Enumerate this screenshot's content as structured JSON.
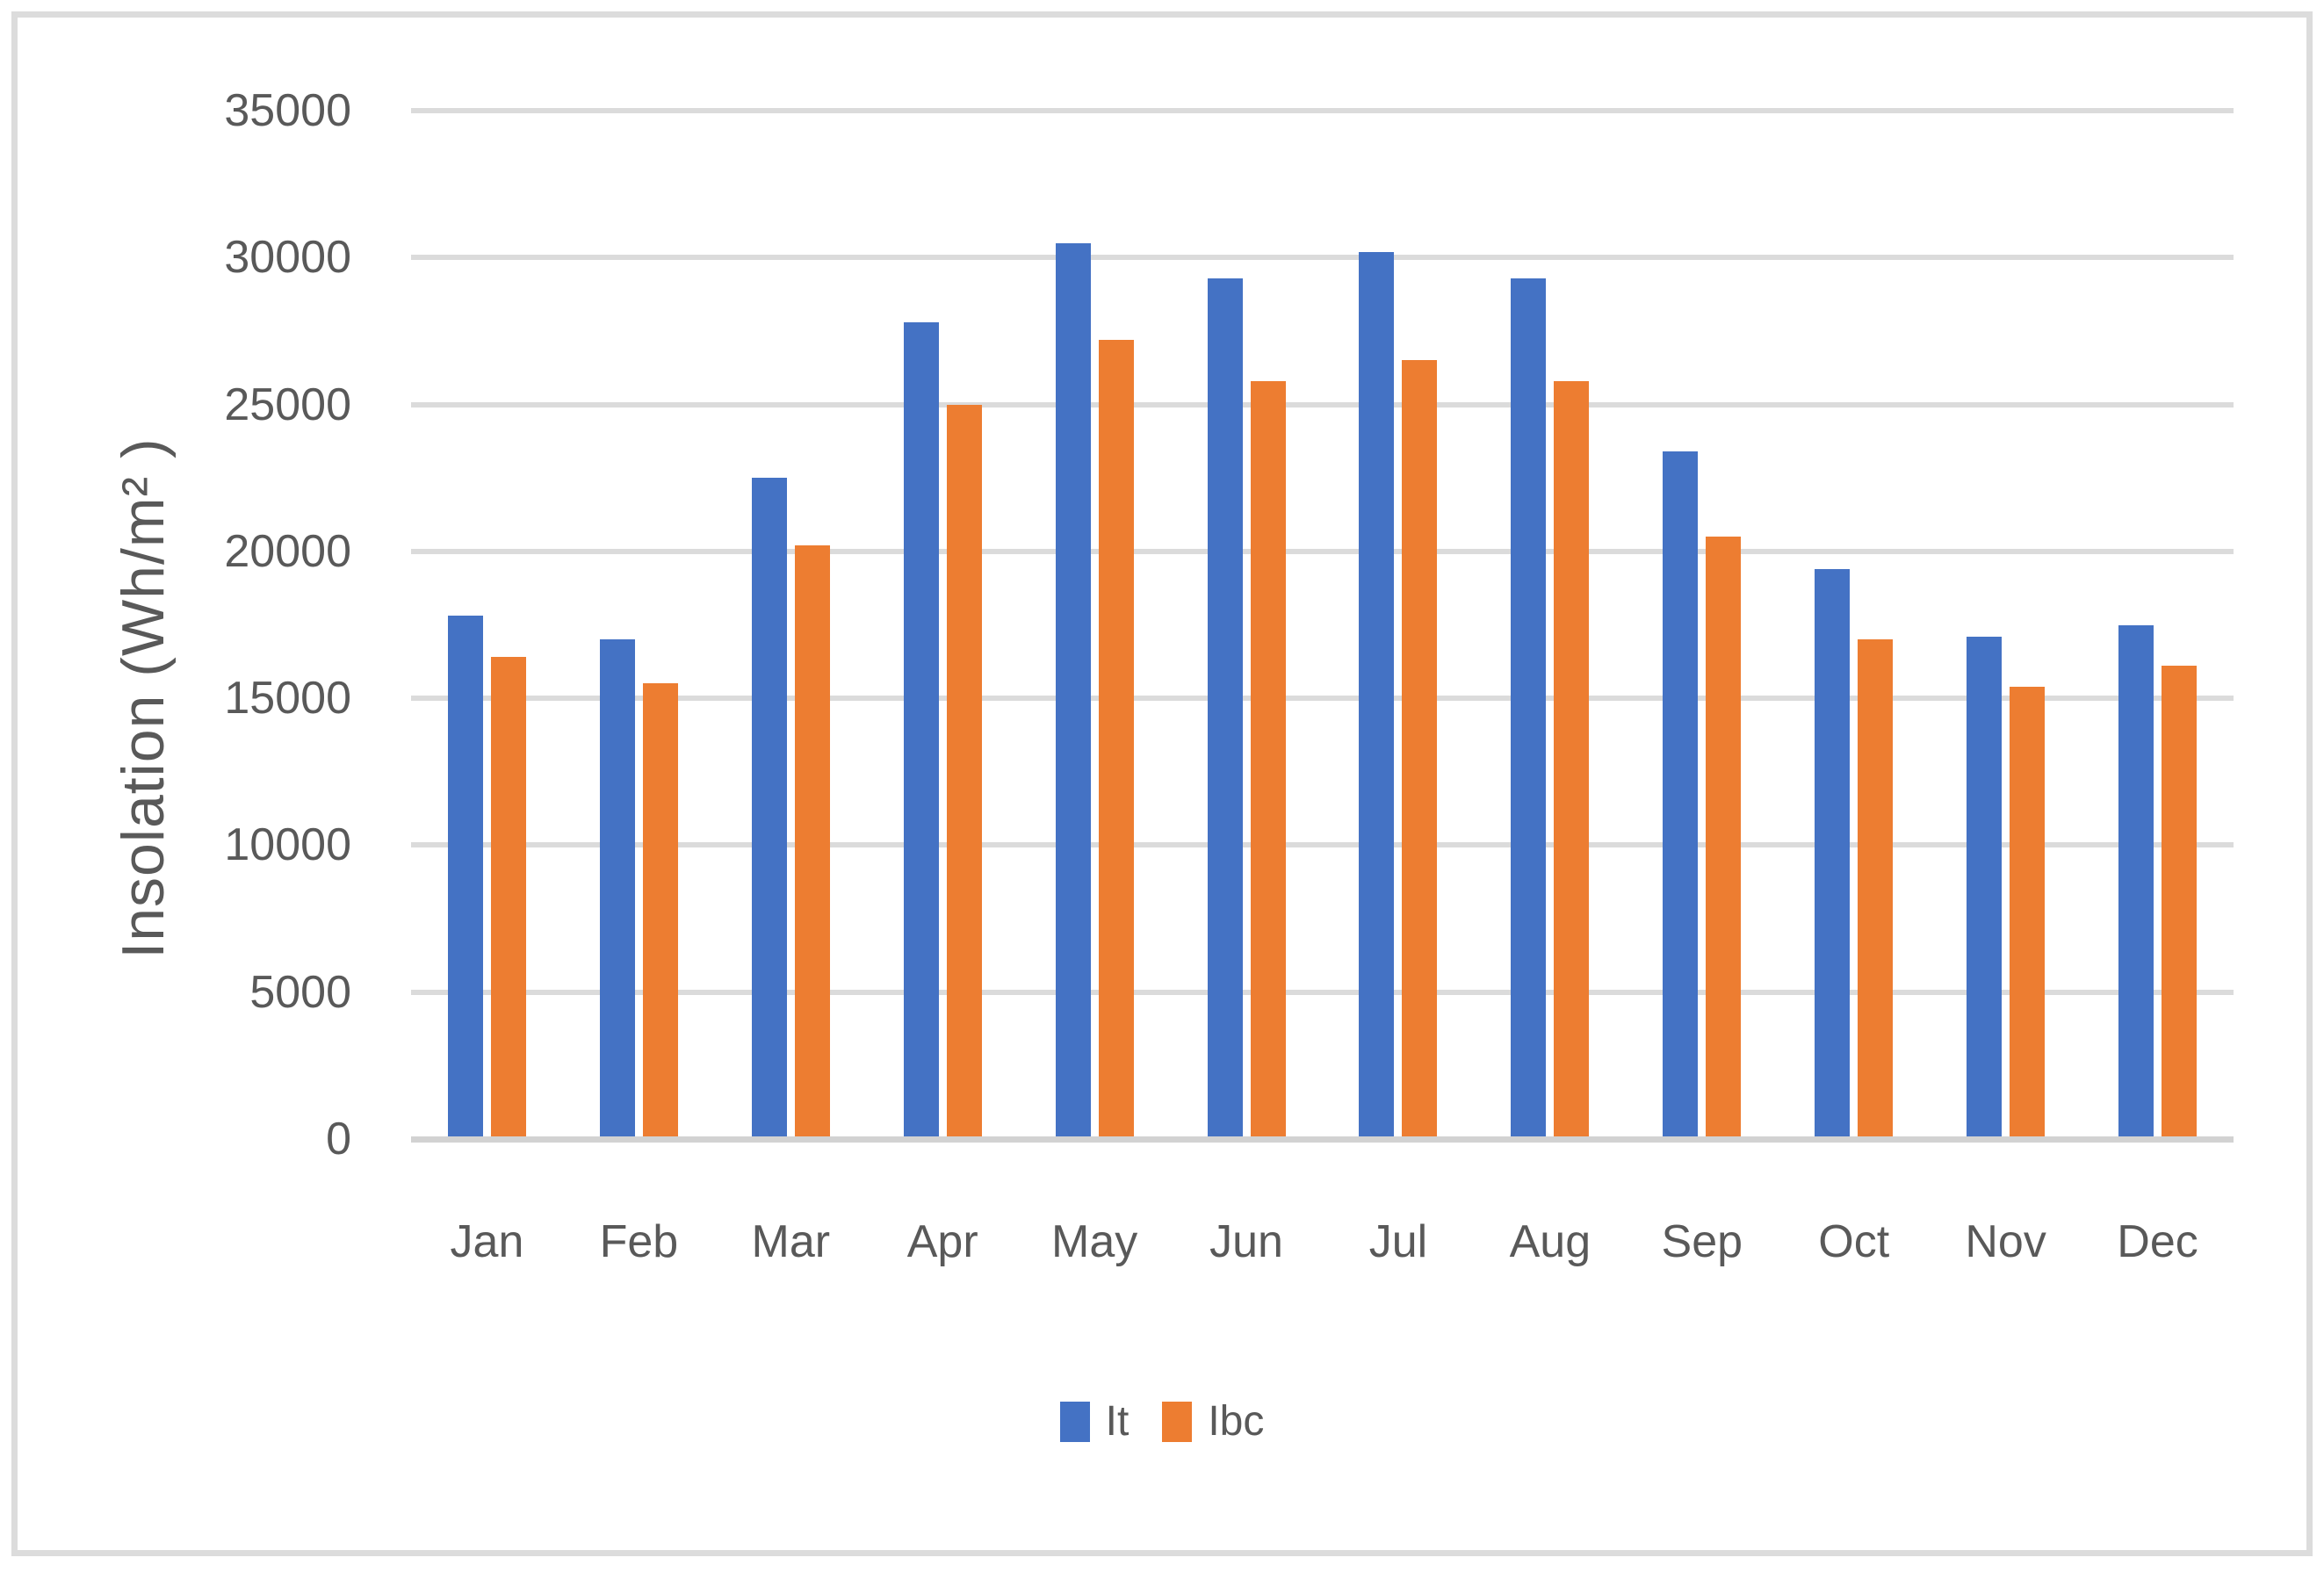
{
  "chart_data": {
    "type": "bar",
    "title": "",
    "ylabel": "Insolation (Wh/m² )",
    "xlabel": "",
    "categories": [
      "Jan",
      "Feb",
      "Mar",
      "Apr",
      "May",
      "Jun",
      "Jul",
      "Aug",
      "Sep",
      "Oct",
      "Nov",
      "Dec"
    ],
    "series": [
      {
        "name": "It",
        "color": "#4472C4",
        "values": [
          17800,
          17000,
          22500,
          27800,
          30500,
          29300,
          30200,
          29300,
          23400,
          19400,
          17100,
          17500
        ]
      },
      {
        "name": "Ibc",
        "color": "#ED7D31",
        "values": [
          16400,
          15500,
          20200,
          25000,
          27200,
          25800,
          26500,
          25800,
          20500,
          17000,
          15400,
          16100
        ]
      }
    ],
    "ylim": [
      0,
      35000
    ],
    "ytick_step": 5000,
    "yticks": [
      0,
      5000,
      10000,
      15000,
      20000,
      25000,
      30000,
      35000
    ],
    "ytick_labels": [
      "0",
      "5000",
      "10000",
      "15000",
      "20000",
      "25000",
      "30000",
      "35000"
    ],
    "grid": "horizontal",
    "legend_position": "bottom",
    "colors": {
      "gridline": "#dbdbdb",
      "axis_line": "#d2d2d2",
      "text": "#595959",
      "frame_border": "#dcdcdc",
      "background": "#ffffff"
    }
  }
}
